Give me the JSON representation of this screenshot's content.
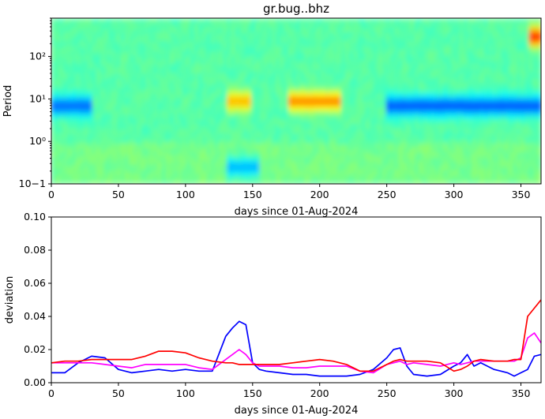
{
  "chart_data": [
    {
      "type": "heatmap",
      "title": "gr.bug..bhz",
      "xlabel": "days since 01-Aug-2024",
      "ylabel": "Period",
      "xlim": [
        0,
        365
      ],
      "ylim": [
        0.1,
        800
      ],
      "yscale": "log",
      "colormap": "jet",
      "x_ticks": [
        "0",
        "50",
        "100",
        "150",
        "200",
        "250",
        "300",
        "350"
      ],
      "y_ticks": [
        "10−1",
        "10⁰",
        "10¹",
        "10²"
      ],
      "features": [
        {
          "desc": "blue band",
          "period": 7,
          "days": [
            0,
            30
          ],
          "level": 0.22
        },
        {
          "desc": "blue band",
          "period": 7,
          "days": [
            250,
            365
          ],
          "level": 0.2
        },
        {
          "desc": "yellow patches",
          "period": 9,
          "days": [
            175,
            215
          ],
          "level": 0.75
        },
        {
          "desc": "yellow patch",
          "period": 9,
          "days": [
            130,
            150
          ],
          "level": 0.7
        },
        {
          "desc": "cyan patch",
          "period": 0.25,
          "days": [
            130,
            155
          ],
          "level": 0.3
        },
        {
          "desc": "red column",
          "period": 300,
          "days": [
            355,
            365
          ],
          "level": 0.85
        }
      ]
    },
    {
      "type": "line",
      "title": "",
      "xlabel": "days since 01-Aug-2024",
      "ylabel": "deviation",
      "xlim": [
        0,
        365
      ],
      "ylim": [
        0,
        0.1
      ],
      "x_ticks": [
        "0",
        "50",
        "100",
        "150",
        "200",
        "250",
        "300",
        "350"
      ],
      "y_ticks": [
        "0.00",
        "0.02",
        "0.04",
        "0.06",
        "0.08",
        "0.10"
      ],
      "x": [
        0,
        10,
        20,
        30,
        40,
        50,
        60,
        70,
        80,
        90,
        100,
        110,
        120,
        130,
        135,
        140,
        145,
        150,
        155,
        160,
        170,
        180,
        190,
        200,
        210,
        220,
        230,
        240,
        250,
        255,
        260,
        265,
        270,
        280,
        290,
        300,
        305,
        310,
        315,
        320,
        330,
        340,
        345,
        350,
        355,
        360,
        365
      ],
      "series": [
        {
          "color": "#0000ff",
          "values": [
            0.006,
            0.006,
            0.012,
            0.016,
            0.015,
            0.008,
            0.006,
            0.007,
            0.008,
            0.007,
            0.008,
            0.007,
            0.007,
            0.028,
            0.033,
            0.037,
            0.035,
            0.012,
            0.008,
            0.007,
            0.006,
            0.005,
            0.005,
            0.004,
            0.004,
            0.004,
            0.005,
            0.008,
            0.015,
            0.02,
            0.021,
            0.01,
            0.005,
            0.004,
            0.005,
            0.01,
            0.012,
            0.017,
            0.01,
            0.012,
            0.008,
            0.006,
            0.004,
            0.006,
            0.008,
            0.016,
            0.017
          ]
        },
        {
          "color": "#ff00ff",
          "values": [
            0.012,
            0.012,
            0.012,
            0.012,
            0.011,
            0.01,
            0.009,
            0.011,
            0.011,
            0.011,
            0.011,
            0.009,
            0.008,
            0.014,
            0.017,
            0.02,
            0.017,
            0.012,
            0.01,
            0.01,
            0.01,
            0.009,
            0.009,
            0.01,
            0.01,
            0.01,
            0.007,
            0.006,
            0.011,
            0.012,
            0.013,
            0.011,
            0.012,
            0.011,
            0.01,
            0.012,
            0.011,
            0.012,
            0.013,
            0.013,
            0.013,
            0.013,
            0.013,
            0.015,
            0.027,
            0.03,
            0.024
          ]
        },
        {
          "color": "#ff0000",
          "values": [
            0.012,
            0.013,
            0.013,
            0.014,
            0.014,
            0.014,
            0.014,
            0.016,
            0.019,
            0.019,
            0.018,
            0.015,
            0.013,
            0.012,
            0.012,
            0.011,
            0.011,
            0.011,
            0.011,
            0.011,
            0.011,
            0.012,
            0.013,
            0.014,
            0.013,
            0.011,
            0.007,
            0.007,
            0.011,
            0.013,
            0.014,
            0.013,
            0.013,
            0.013,
            0.012,
            0.007,
            0.008,
            0.01,
            0.013,
            0.014,
            0.013,
            0.013,
            0.014,
            0.014,
            0.04,
            0.045,
            0.05
          ]
        }
      ]
    }
  ]
}
